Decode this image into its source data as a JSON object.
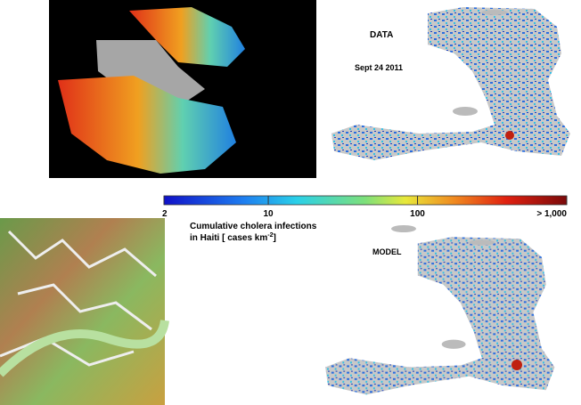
{
  "panels": {
    "data_label": "DATA",
    "date": "Sept 24  2011",
    "model_label": "MODEL"
  },
  "colorbar": {
    "scale": "log",
    "lim": [
      2,
      1000
    ],
    "ticks": [
      2,
      10,
      100,
      {
        "value": 1000,
        "label": "> 1,000"
      }
    ],
    "title_line1": "Cumulative cholera infections",
    "title_line2": "in Haiti [ cases km",
    "title_exponent": "-2",
    "title_end": "]"
  }
}
